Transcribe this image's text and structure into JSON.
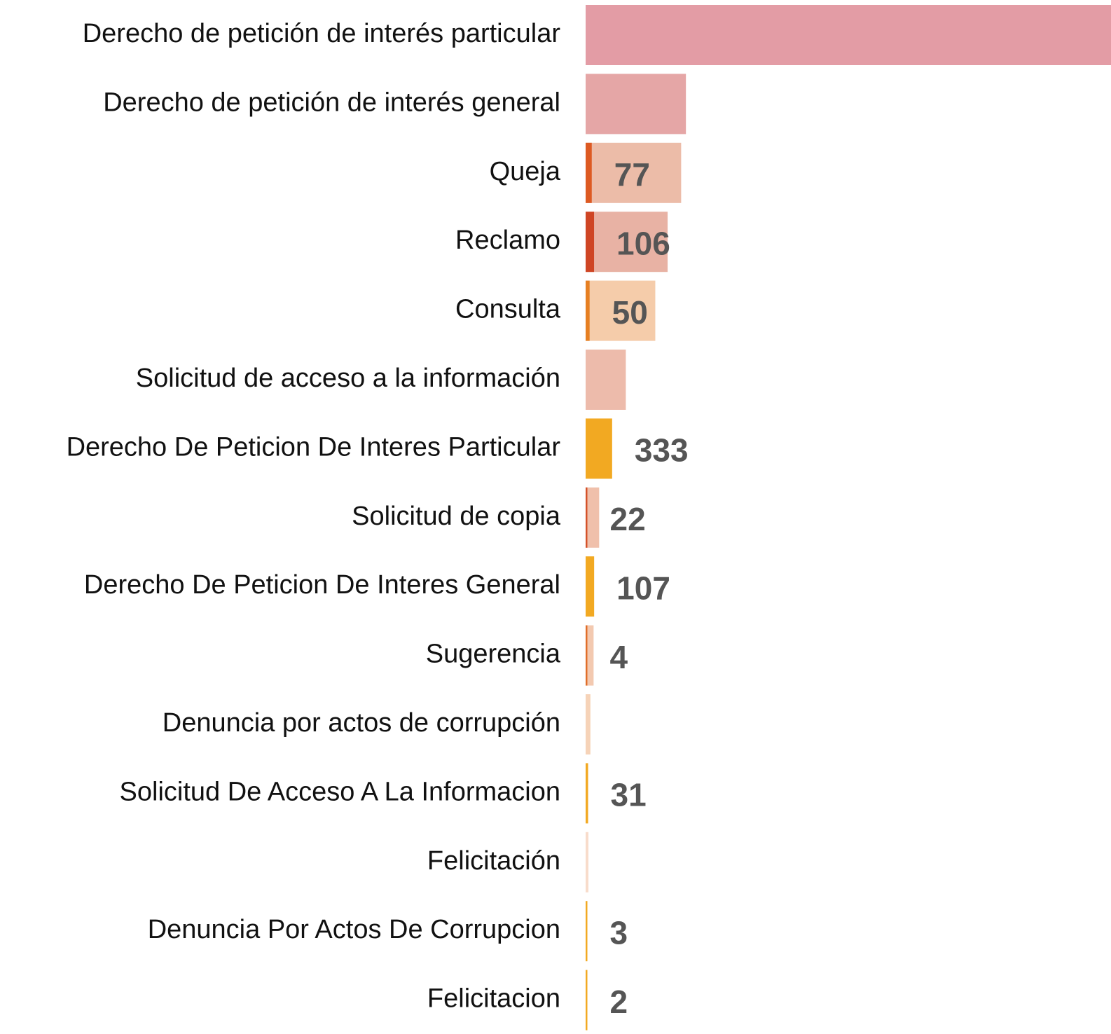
{
  "chart_data": {
    "type": "bar",
    "orientation": "horizontal",
    "categories": [
      "Derecho de petición de interés particular",
      "Derecho de petición de interés general",
      "Queja",
      "Reclamo",
      "Consulta",
      "Solicitud de acceso a la información",
      "Derecho De Peticion De Interes Particular",
      "Solicitud de copia",
      "Derecho De Peticion De Interes General",
      "Sugerencia",
      "Denuncia por actos de corrupción",
      "Solicitud De Acceso A La Informacion",
      "Felicitación",
      "Denuncia Por Actos De Corrupcion",
      "Felicitacion"
    ],
    "xlim": [
      0,
      6600
    ],
    "series": [
      {
        "values": [
          6600,
          1260,
          1200,
          1030,
          875,
          505,
          null,
          170,
          null,
          100,
          60,
          null,
          35,
          null,
          null
        ],
        "colors": [
          "#e39ca5",
          "#e5a6a6",
          "#ecbca8",
          "#e8b2a4",
          "#f5ccaa",
          "#edbbab",
          null,
          "#f0c0ab",
          null,
          "#f3c9b0",
          "#f6d3b8",
          null,
          "#f8dccb",
          null,
          null
        ]
      },
      {
        "values": [
          null,
          null,
          77,
          106,
          50,
          null,
          333,
          22,
          107,
          4,
          null,
          31,
          null,
          3,
          2
        ],
        "colors": [
          null,
          null,
          "#dd5a22",
          "#cf4524",
          "#e67f22",
          null,
          "#f2a922",
          "#d4522a",
          "#f2a922",
          "#e06e2a",
          null,
          "#f2a922",
          null,
          "#f2a922",
          "#f2a922"
        ],
        "data_labels": true
      }
    ]
  }
}
